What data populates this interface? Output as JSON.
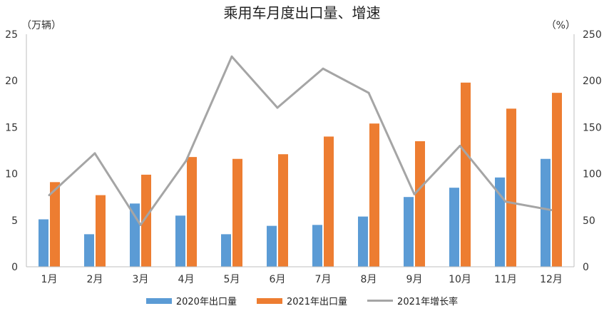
{
  "chart_data": {
    "type": "bar",
    "title": "乘用车月度出口量、增速",
    "left_axis_label": "（万辆）",
    "right_axis_label": "（%）",
    "categories": [
      "1月",
      "2月",
      "3月",
      "4月",
      "5月",
      "6月",
      "7月",
      "8月",
      "9月",
      "10月",
      "11月",
      "12月"
    ],
    "series": [
      {
        "name": "2020年出口量",
        "axis": "left",
        "type": "bar",
        "color": "#5b9bd5",
        "values": [
          5.1,
          3.5,
          6.8,
          5.5,
          3.5,
          4.4,
          4.5,
          5.4,
          7.5,
          8.5,
          9.6,
          11.6
        ]
      },
      {
        "name": "2021年出口量",
        "axis": "left",
        "type": "bar",
        "color": "#ed7d31",
        "values": [
          9.1,
          7.7,
          9.9,
          11.8,
          11.6,
          12.1,
          14.0,
          15.4,
          13.5,
          19.8,
          17.0,
          18.7
        ]
      },
      {
        "name": "2021年增长率",
        "axis": "right",
        "type": "line",
        "color": "#a5a5a5",
        "values": [
          77,
          122,
          45,
          114,
          226,
          171,
          213,
          187,
          78,
          130,
          70,
          61
        ]
      }
    ],
    "left_ylim": [
      0,
      25
    ],
    "left_ticks": [
      "0",
      "5",
      "10",
      "15",
      "20",
      "25"
    ],
    "right_ylim": [
      0,
      250
    ],
    "right_ticks": [
      "0",
      "50",
      "100",
      "150",
      "200",
      "250"
    ],
    "grid": false,
    "legend_position": "bottom"
  }
}
